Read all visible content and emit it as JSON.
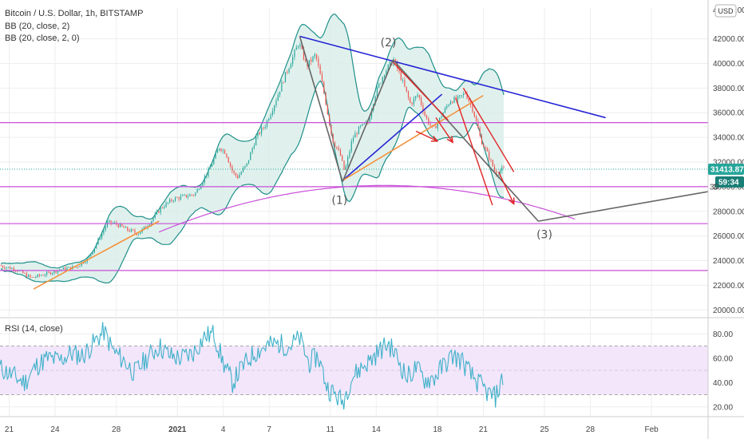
{
  "header": {
    "symbol_line": "Bitcoin / U.S. Dollar, 1h, BITSTAMP",
    "indicator_1": "BB (20, close, 2)",
    "indicator_2": "BB (20, close, 2, 0)",
    "currency_badge": "USD",
    "rsi_title": "RSI (14, close)"
  },
  "price_badges": {
    "last_price": "31413.87",
    "countdown": "59:34",
    "clipped_top_label": "44000.00",
    "partial_30000": "30"
  },
  "colors": {
    "up_candle": "#26a69a",
    "down_candle": "#ef5350",
    "bb_band": "#1f8f8a",
    "bb_fill": "#d8eee9",
    "horizontal_level": "#c84fd8",
    "resistance_line": "#2727d4",
    "support_trend": "#f5923e",
    "projection": "#666666",
    "red_lines": "#e02424",
    "rsi_line": "#3fb1c9",
    "rsi_band": "#f3e6fb",
    "price_badge": "#26a69a",
    "countdown_badge": "#1a7f77"
  },
  "chart_data": [
    {
      "type": "candlestick",
      "symbol": "Bitcoin / U.S. Dollar",
      "interval": "1h",
      "exchange": "BITSTAMP",
      "y_axis_ticks": [
        20000,
        22000,
        24000,
        26000,
        28000,
        30000,
        32000,
        34000,
        36000,
        38000,
        40000,
        42000
      ],
      "y_tick_labels": [
        "20000.00",
        "22000.00",
        "24000.00",
        "26000.00",
        "28000.00",
        "30000.00",
        "32000.00",
        "34000.00",
        "36000.00",
        "38000.00",
        "40000.00",
        "42000.00"
      ],
      "ylim": [
        19500,
        44500
      ],
      "x_tick_labels": [
        "21",
        "24",
        "28",
        "2021",
        "4",
        "7",
        "11",
        "14",
        "18",
        "21",
        "25",
        "28",
        "Feb"
      ],
      "x_tick_days": [
        21,
        24,
        28,
        32,
        35,
        38,
        42,
        45,
        49,
        52,
        56,
        59,
        63
      ],
      "xlim_days": [
        20.4,
        66.7
      ],
      "last_day": 53.3,
      "price_path": [
        [
          20.4,
          23600
        ],
        [
          21.5,
          23300
        ],
        [
          22.5,
          22600
        ],
        [
          23.4,
          22900
        ],
        [
          24.5,
          23300
        ],
        [
          25.5,
          23500
        ],
        [
          26.3,
          24300
        ],
        [
          26.9,
          25700
        ],
        [
          27.5,
          27100
        ],
        [
          28.0,
          27000
        ],
        [
          28.8,
          26500
        ],
        [
          29.5,
          26200
        ],
        [
          30.2,
          27000
        ],
        [
          31.0,
          28300
        ],
        [
          31.8,
          29000
        ],
        [
          32.5,
          29200
        ],
        [
          33.2,
          29400
        ],
        [
          34.1,
          31300
        ],
        [
          34.8,
          33200
        ],
        [
          35.2,
          32800
        ],
        [
          35.7,
          31100
        ],
        [
          36.0,
          30800
        ],
        [
          36.6,
          31800
        ],
        [
          37.2,
          34000
        ],
        [
          37.8,
          35000
        ],
        [
          38.4,
          36700
        ],
        [
          39.0,
          38700
        ],
        [
          39.6,
          40500
        ],
        [
          40.0,
          41700
        ],
        [
          40.5,
          39800
        ],
        [
          41.1,
          40700
        ],
        [
          41.6,
          37900
        ],
        [
          42.2,
          33800
        ],
        [
          42.7,
          32600
        ],
        [
          43.0,
          31200
        ],
        [
          43.5,
          33900
        ],
        [
          44.0,
          34800
        ],
        [
          44.5,
          35100
        ],
        [
          45.0,
          37500
        ],
        [
          45.6,
          39300
        ],
        [
          46.2,
          40300
        ],
        [
          46.7,
          38800
        ],
        [
          47.3,
          36700
        ],
        [
          47.8,
          37500
        ],
        [
          48.3,
          35600
        ],
        [
          48.8,
          34600
        ],
        [
          49.3,
          35700
        ],
        [
          49.9,
          37000
        ],
        [
          50.4,
          37100
        ],
        [
          50.9,
          37600
        ],
        [
          51.4,
          36200
        ],
        [
          51.9,
          33800
        ],
        [
          52.4,
          32500
        ],
        [
          52.9,
          31000
        ],
        [
          53.3,
          31413.87
        ]
      ],
      "rsi": {
        "title": "RSI (14, close)",
        "ticks": [
          20,
          40,
          60,
          80
        ],
        "tick_labels": [
          "20.00",
          "40.00",
          "60.00",
          "80.00"
        ],
        "ylim": [
          12,
          92
        ],
        "band": [
          30,
          70
        ],
        "values": [
          [
            20.4,
            52
          ],
          [
            21.2,
            46
          ],
          [
            22.0,
            40
          ],
          [
            22.8,
            54
          ],
          [
            23.5,
            60
          ],
          [
            24.3,
            58
          ],
          [
            25.0,
            64
          ],
          [
            25.8,
            62
          ],
          [
            26.5,
            72
          ],
          [
            27.2,
            82
          ],
          [
            27.8,
            66
          ],
          [
            28.5,
            58
          ],
          [
            29.2,
            48
          ],
          [
            30.0,
            60
          ],
          [
            30.8,
            70
          ],
          [
            31.5,
            62
          ],
          [
            32.2,
            60
          ],
          [
            33.0,
            64
          ],
          [
            33.8,
            78
          ],
          [
            34.4,
            80
          ],
          [
            35.0,
            56
          ],
          [
            35.6,
            40
          ],
          [
            36.2,
            52
          ],
          [
            37.0,
            64
          ],
          [
            37.8,
            70
          ],
          [
            38.6,
            72
          ],
          [
            39.3,
            70
          ],
          [
            40.0,
            76
          ],
          [
            40.6,
            56
          ],
          [
            41.2,
            62
          ],
          [
            41.8,
            36
          ],
          [
            42.3,
            30
          ],
          [
            42.8,
            24
          ],
          [
            43.4,
            44
          ],
          [
            44.0,
            52
          ],
          [
            44.6,
            58
          ],
          [
            45.2,
            66
          ],
          [
            45.8,
            72
          ],
          [
            46.4,
            60
          ],
          [
            47.0,
            44
          ],
          [
            47.6,
            52
          ],
          [
            48.2,
            42
          ],
          [
            48.8,
            44
          ],
          [
            49.4,
            54
          ],
          [
            50.0,
            62
          ],
          [
            50.6,
            58
          ],
          [
            51.2,
            46
          ],
          [
            51.8,
            38
          ],
          [
            52.4,
            30
          ],
          [
            52.8,
            28
          ],
          [
            53.3,
            44
          ]
        ]
      },
      "horizontal_levels": [
        35200,
        30000,
        27000,
        23200
      ],
      "annotations": [
        {
          "text": "(1)",
          "x": 42.6,
          "y": 28600
        },
        {
          "text": "(2)",
          "x": 45.8,
          "y": 41400
        },
        {
          "text": "(3)",
          "x": 56.0,
          "y": 25800
        }
      ]
    }
  ]
}
